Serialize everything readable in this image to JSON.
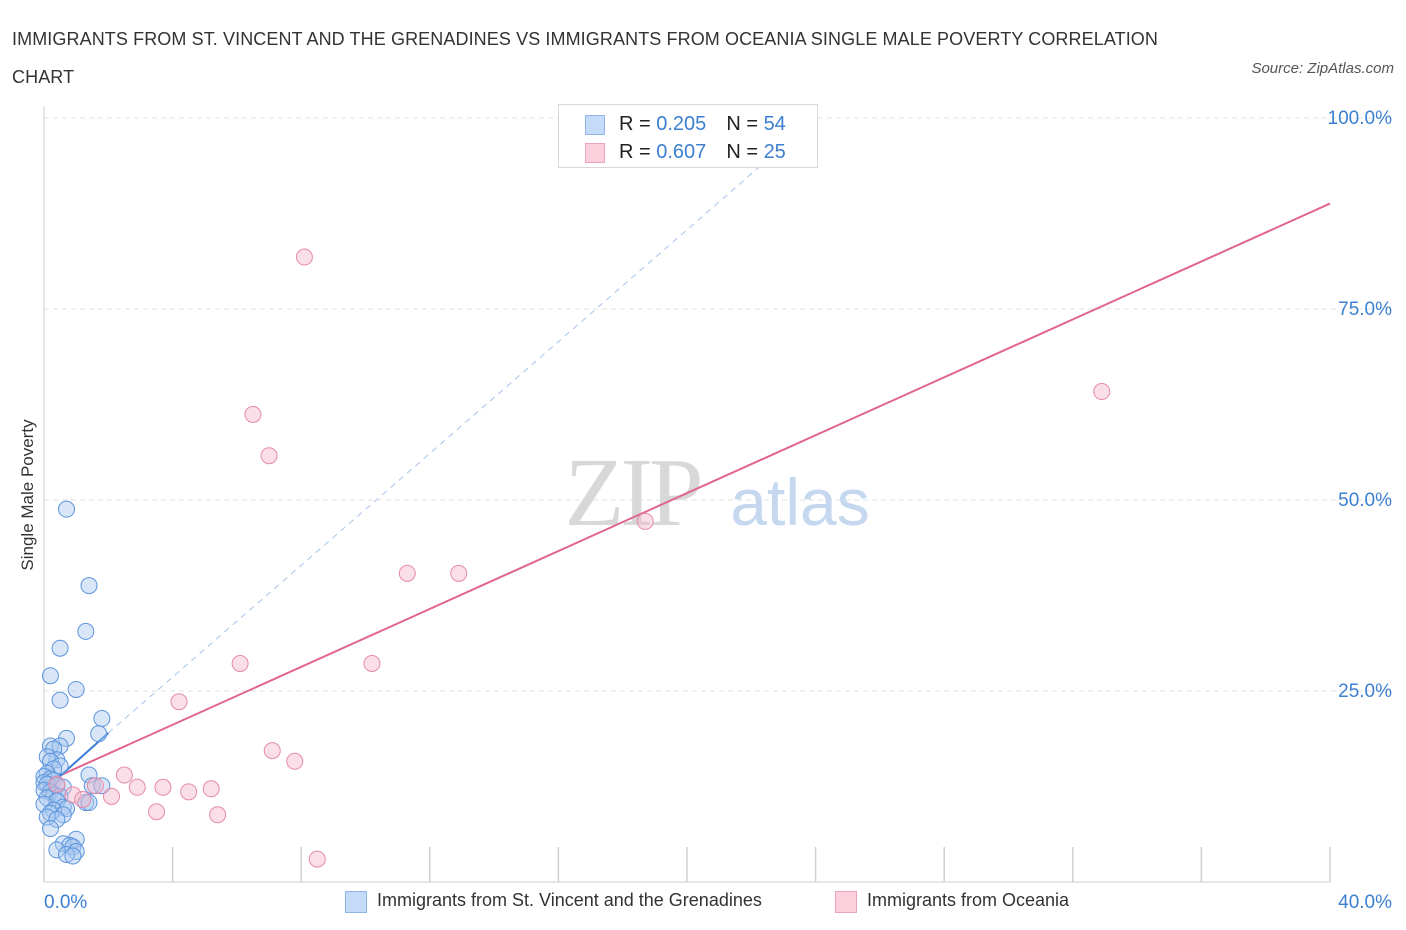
{
  "title": "IMMIGRANTS FROM ST. VINCENT AND THE GRENADINES VS IMMIGRANTS FROM OCEANIA SINGLE MALE POVERTY CORRELATION CHART",
  "source": "Source: ZipAtlas.com",
  "watermark": {
    "zip": "ZIP",
    "atlas": "atlas"
  },
  "legend": {
    "rows": [
      {
        "r_label": "R = ",
        "r_value": "0.205",
        "n_label": "N = ",
        "n_value": "54",
        "color": "#a8c8f0"
      },
      {
        "r_label": "R = ",
        "r_value": "0.607",
        "n_label": "N = ",
        "n_value": "25",
        "color": "#f5b8cb"
      }
    ]
  },
  "bottom_legend": [
    {
      "label": "Immigrants from St. Vincent and the Grenadines",
      "color": "#a8c8f0"
    },
    {
      "label": "Immigrants from Oceania",
      "color": "#f5b8cb"
    }
  ],
  "chart_data": {
    "type": "scatter",
    "xlabel": "",
    "ylabel": "Single Male Poverty",
    "xlim": [
      0,
      40
    ],
    "ylim": [
      0,
      100
    ],
    "x_tick_labels": [
      "0.0%",
      "40.0%"
    ],
    "y_tick_labels": [
      {
        "value": 25,
        "label": "25.0%"
      },
      {
        "value": 50,
        "label": "50.0%"
      },
      {
        "value": 75,
        "label": "75.0%"
      },
      {
        "value": 100,
        "label": "100.0%"
      }
    ],
    "grid": true,
    "series": [
      {
        "name": "Immigrants from St. Vincent and the Grenadines",
        "color": "#a8c8f0",
        "stroke": "#5c95dd",
        "points": [
          [
            0.7,
            48.8
          ],
          [
            1.4,
            38.8
          ],
          [
            1.3,
            32.8
          ],
          [
            0.5,
            30.6
          ],
          [
            0.2,
            27.0
          ],
          [
            1.0,
            25.2
          ],
          [
            0.5,
            23.8
          ],
          [
            1.8,
            21.4
          ],
          [
            1.7,
            19.4
          ],
          [
            0.7,
            18.8
          ],
          [
            0.2,
            17.8
          ],
          [
            0.5,
            17.8
          ],
          [
            0.3,
            17.4
          ],
          [
            0.4,
            16.0
          ],
          [
            0.1,
            16.4
          ],
          [
            0.2,
            15.8
          ],
          [
            0.5,
            15.2
          ],
          [
            0.3,
            14.8
          ],
          [
            0.1,
            14.2
          ],
          [
            0.0,
            13.8
          ],
          [
            0.2,
            13.5
          ],
          [
            0.3,
            13.3
          ],
          [
            0.0,
            13.0
          ],
          [
            0.1,
            12.8
          ],
          [
            0.4,
            12.6
          ],
          [
            0.6,
            12.4
          ],
          [
            1.4,
            14.0
          ],
          [
            1.5,
            12.6
          ],
          [
            1.8,
            12.6
          ],
          [
            0.0,
            12.0
          ],
          [
            0.2,
            11.8
          ],
          [
            0.3,
            11.4
          ],
          [
            0.1,
            11.0
          ],
          [
            0.5,
            11.2
          ],
          [
            0.4,
            10.6
          ],
          [
            0.0,
            10.2
          ],
          [
            1.3,
            10.4
          ],
          [
            1.4,
            10.4
          ],
          [
            0.6,
            9.8
          ],
          [
            0.7,
            9.6
          ],
          [
            0.3,
            9.4
          ],
          [
            0.2,
            9.0
          ],
          [
            0.6,
            8.8
          ],
          [
            0.1,
            8.5
          ],
          [
            0.4,
            8.2
          ],
          [
            0.2,
            7.0
          ],
          [
            1.0,
            5.6
          ],
          [
            0.6,
            5.0
          ],
          [
            0.8,
            4.8
          ],
          [
            0.4,
            4.2
          ],
          [
            0.9,
            4.6
          ],
          [
            1.0,
            4.0
          ],
          [
            0.7,
            3.6
          ],
          [
            0.9,
            3.4
          ]
        ]
      },
      {
        "name": "Immigrants from Oceania",
        "color": "#f5b8cb",
        "stroke": "#e58aa8",
        "points": [
          [
            8.1,
            81.8
          ],
          [
            32.9,
            64.2
          ],
          [
            6.5,
            61.2
          ],
          [
            7.0,
            55.8
          ],
          [
            18.7,
            47.2
          ],
          [
            11.3,
            40.4
          ],
          [
            12.9,
            40.4
          ],
          [
            6.1,
            28.6
          ],
          [
            10.2,
            28.6
          ],
          [
            4.2,
            23.6
          ],
          [
            7.1,
            17.2
          ],
          [
            7.8,
            15.8
          ],
          [
            2.5,
            14.0
          ],
          [
            0.4,
            12.8
          ],
          [
            1.6,
            12.6
          ],
          [
            2.9,
            12.4
          ],
          [
            3.7,
            12.4
          ],
          [
            5.2,
            12.2
          ],
          [
            4.5,
            11.8
          ],
          [
            0.9,
            11.4
          ],
          [
            2.1,
            11.2
          ],
          [
            1.2,
            10.8
          ],
          [
            3.5,
            9.2
          ],
          [
            5.4,
            8.8
          ],
          [
            8.5,
            3.0
          ]
        ]
      }
    ],
    "trend_lines": [
      {
        "series": "Immigrants from Oceania",
        "color": "#e0668f",
        "from": [
          0.0,
          13.0
        ],
        "to": [
          40.0,
          88.8
        ],
        "style": "solid"
      },
      {
        "series": "Immigrants from St. Vincent and the Grenadines",
        "color": "#3a7bd5",
        "from": [
          0.0,
          12.0
        ],
        "to": [
          2.0,
          19.5
        ],
        "style": "solid"
      },
      {
        "series": "Immigrants from St. Vincent and the Grenadines",
        "color": "#a8c4ea",
        "from": [
          2.0,
          19.5
        ],
        "to": [
          24.0,
          100.0
        ],
        "style": "dashed"
      }
    ]
  }
}
